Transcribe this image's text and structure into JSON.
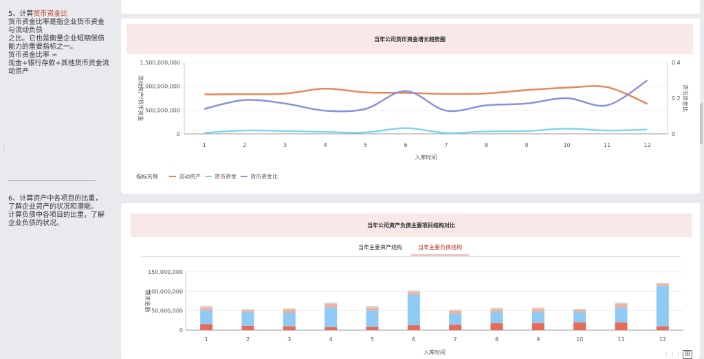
{
  "sidebar": {
    "section5": {
      "prefix": "5、计算",
      "highlight": "货币资金比",
      "lines": [
        "货币资金比率是指企业货币资金",
        "与流动负债",
        "之比。它也是衡量企业短期偿债",
        "能力的重要指标之一。",
        "货币资金比率 =",
        "现金+银行存款+其他货币资金流",
        "动资产"
      ]
    },
    "section6": {
      "lines": [
        "6、计算资产中各项目的比重，",
        "了解企业资产的状况和潜能。",
        "计算负债中各项目的比重，了解",
        "企业负债的状况。"
      ]
    }
  },
  "chart_data": [
    {
      "type": "line",
      "title": "当年公司货币资金增长趋势图",
      "xlabel": "入库时间",
      "ylabel": "流动资产/货币资金",
      "ylabel_right": "货币资金比",
      "categories": [
        "1",
        "2",
        "3",
        "4",
        "5",
        "6",
        "7",
        "8",
        "9",
        "10",
        "11",
        "12"
      ],
      "ylim": [
        0,
        1500000000
      ],
      "yticks": [
        "0",
        "500,000,000",
        "1,000,000,000",
        "1,500,000,000"
      ],
      "y2lim": [
        0,
        0.4
      ],
      "y2ticks": [
        "0",
        "0.2",
        "0.4"
      ],
      "legend_title": "指标名称",
      "legend_position": "bottom-left",
      "series": [
        {
          "name": "流动资产",
          "axis": "left",
          "color": "#e8865a",
          "values": [
            830000000,
            835000000,
            845000000,
            950000000,
            870000000,
            860000000,
            840000000,
            850000000,
            920000000,
            970000000,
            980000000,
            630000000
          ]
        },
        {
          "name": "货币资金",
          "axis": "left",
          "color": "#7fd6ec",
          "values": [
            20000000,
            70000000,
            60000000,
            40000000,
            30000000,
            120000000,
            20000000,
            50000000,
            60000000,
            110000000,
            70000000,
            90000000
          ]
        },
        {
          "name": "货币资金比",
          "axis": "right",
          "color": "#8a8fe0",
          "values": [
            0.14,
            0.19,
            0.17,
            0.13,
            0.14,
            0.24,
            0.13,
            0.16,
            0.17,
            0.2,
            0.16,
            0.3
          ]
        }
      ]
    },
    {
      "type": "bar",
      "stacked": true,
      "title": "当年公司资产负债主要项目结构对比",
      "xlabel": "入库时间",
      "ylabel": "期末金额",
      "categories": [
        "1",
        "2",
        "3",
        "4",
        "5",
        "6",
        "7",
        "8",
        "9",
        "10",
        "11",
        "12"
      ],
      "ylim": [
        0,
        150000000
      ],
      "yticks": [
        "0",
        "50,000,000",
        "100,000,000",
        "150,000,000"
      ],
      "series": [
        {
          "color": "#e66a5a",
          "values": [
            15000000,
            11000000,
            10000000,
            8000000,
            9000000,
            13000000,
            14000000,
            18000000,
            18000000,
            20000000,
            20000000,
            10000000
          ]
        },
        {
          "color": "#8fcaf4",
          "values": [
            36000000,
            36000000,
            35000000,
            51000000,
            42000000,
            79000000,
            29000000,
            29000000,
            29000000,
            27000000,
            39000000,
            104000000
          ]
        },
        {
          "color": "#f4b199",
          "values": [
            7000000,
            4000000,
            8000000,
            8000000,
            7000000,
            6000000,
            7000000,
            7000000,
            7000000,
            5000000,
            8000000,
            5000000
          ]
        },
        {
          "color": "#d5d5d5",
          "values": [
            4000000,
            3000000,
            3000000,
            4000000,
            4000000,
            4000000,
            3000000,
            3000000,
            4000000,
            3000000,
            4000000,
            3000000
          ]
        }
      ]
    }
  ],
  "tabs": [
    "当年主要资产结构",
    "当年主要负债结构"
  ],
  "corner_icon": "grid-icon"
}
